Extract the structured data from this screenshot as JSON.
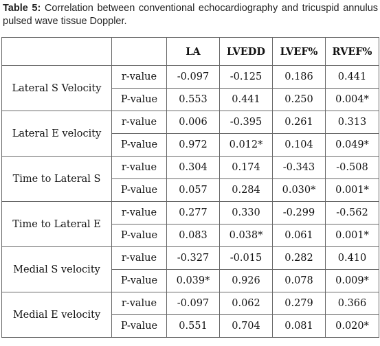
{
  "caption": {
    "label": "Table 5:",
    "text": "Correlation between conventional echocardiography and tricuspid annulus pulsed wave tissue Doppler."
  },
  "table": {
    "headers": [
      "",
      "",
      "LA",
      "LVEDD",
      "LVEF%",
      "RVEF%"
    ],
    "rows": [
      {
        "measure": "Lateral S Velocity",
        "r": [
          "-0.097",
          "-0.125",
          "0.186",
          "0.441"
        ],
        "p": [
          "0.553",
          "0.441",
          "0.250",
          "0.004*"
        ]
      },
      {
        "measure": "Lateral E velocity",
        "r": [
          "0.006",
          "-0.395",
          "0.261",
          "0.313"
        ],
        "p": [
          "0.972",
          "0.012*",
          "0.104",
          "0.049*"
        ]
      },
      {
        "measure": "Time to Lateral S",
        "r": [
          "0.304",
          "0.174",
          "-0.343",
          "-0.508"
        ],
        "p": [
          "0.057",
          "0.284",
          "0.030*",
          "0.001*"
        ]
      },
      {
        "measure": "Time to Lateral E",
        "r": [
          "0.277",
          "0.330",
          "-0.299",
          "-0.562"
        ],
        "p": [
          "0.083",
          "0.038*",
          "0.061",
          "0.001*"
        ]
      },
      {
        "measure": "Medial S velocity",
        "r": [
          "-0.327",
          "-0.015",
          "0.282",
          "0.410"
        ],
        "p": [
          "0.039*",
          "0.926",
          "0.078",
          "0.009*"
        ]
      },
      {
        "measure": "Medial E velocity",
        "r": [
          "-0.097",
          "0.062",
          "0.279",
          "0.366"
        ],
        "p": [
          "0.551",
          "0.704",
          "0.081",
          "0.020*"
        ]
      }
    ],
    "r_label": "r-value",
    "p_label": "P-value"
  }
}
